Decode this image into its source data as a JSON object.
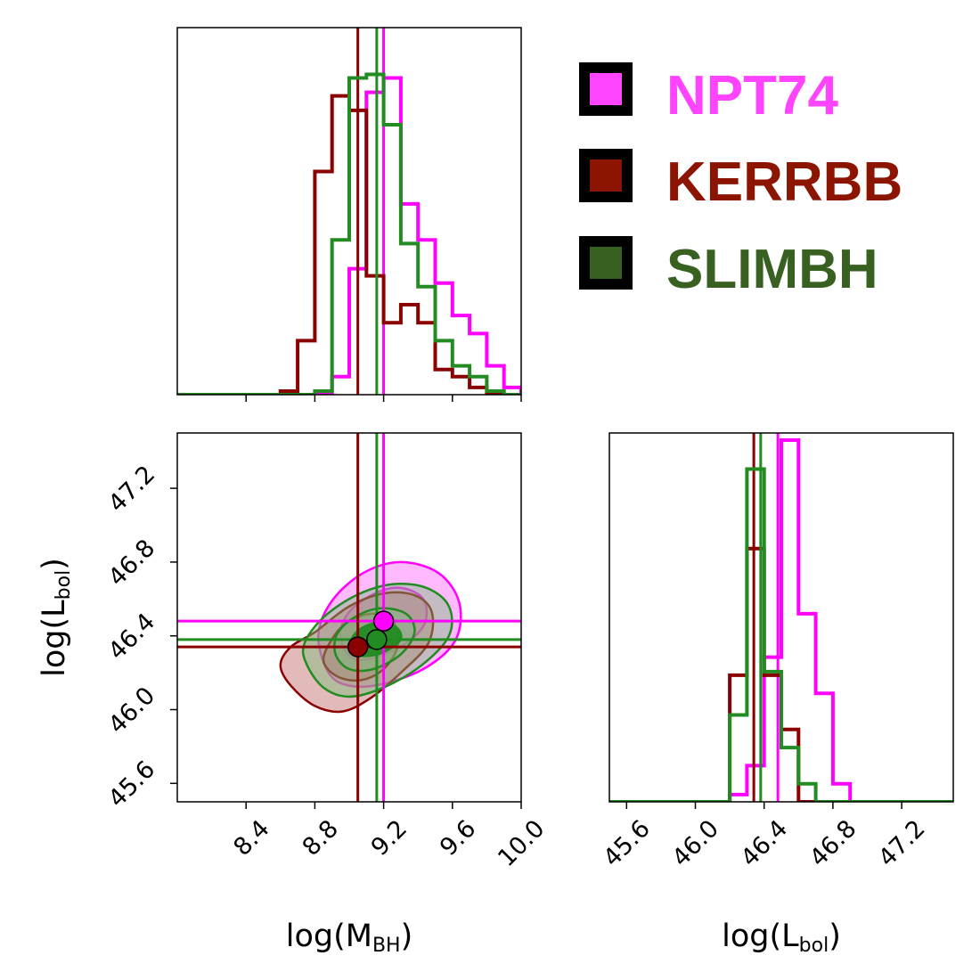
{
  "chart_data": {
    "type": "corner",
    "title": "",
    "parameters": [
      {
        "key": "mbh",
        "label": "log(M",
        "sub": "BH",
        "suffix": ")",
        "range": [
          8.0,
          10.0
        ],
        "ticks": [
          "8.4",
          "8.8",
          "9.2",
          "9.6",
          "10.0"
        ]
      },
      {
        "key": "lbol",
        "label": "log(L",
        "sub": "bol",
        "suffix": ")",
        "range": [
          45.5,
          47.5
        ],
        "ticks": [
          "45.6",
          "46.0",
          "46.4",
          "46.8",
          "47.2"
        ]
      }
    ],
    "hist_bins_mbh": [
      8.0,
      8.1,
      8.2,
      8.3,
      8.4,
      8.5,
      8.6,
      8.7,
      8.8,
      8.9,
      9.0,
      9.1,
      9.2,
      9.3,
      9.4,
      9.5,
      9.6,
      9.7,
      9.8,
      9.9,
      10.0
    ],
    "hist_bins_lbol": [
      45.5,
      45.6,
      45.7,
      45.8,
      45.9,
      46.0,
      46.1,
      46.2,
      46.3,
      46.4,
      46.5,
      46.6,
      46.7,
      46.8,
      46.9,
      47.0,
      47.1,
      47.2,
      47.3,
      47.4,
      47.5
    ],
    "series": [
      {
        "name": "NPT74",
        "color": "#ff00ff",
        "fill": "#ff66ff",
        "legend_color": "#ff44ff",
        "point": [
          9.2,
          46.48
        ],
        "hist_mbh": [
          0,
          0,
          0,
          0,
          0,
          0,
          0,
          0,
          0,
          0.05,
          0.35,
          0.84,
          0.88,
          0.53,
          0.43,
          0.31,
          0.22,
          0.17,
          0.08,
          0.02
        ],
        "hist_lbol": [
          0,
          0,
          0,
          0,
          0,
          0,
          0,
          0.02,
          0.1,
          0.4,
          1.0,
          0.52,
          0.3,
          0.05,
          0,
          0,
          0,
          0,
          0,
          0
        ],
        "contour_inner": [
          [
            8.97,
            46.33
          ],
          [
            9.04,
            46.27
          ],
          [
            9.17,
            46.29
          ],
          [
            9.33,
            46.36
          ],
          [
            9.44,
            46.47
          ],
          [
            9.43,
            46.6
          ],
          [
            9.3,
            46.66
          ],
          [
            9.15,
            46.63
          ],
          [
            9.01,
            46.54
          ],
          [
            8.95,
            46.43
          ]
        ],
        "contour_outer": [
          [
            8.88,
            46.2
          ],
          [
            9.0,
            46.13
          ],
          [
            9.2,
            46.14
          ],
          [
            9.45,
            46.23
          ],
          [
            9.62,
            46.38
          ],
          [
            9.64,
            46.58
          ],
          [
            9.52,
            46.74
          ],
          [
            9.3,
            46.8
          ],
          [
            9.08,
            46.74
          ],
          [
            8.9,
            46.59
          ],
          [
            8.82,
            46.4
          ]
        ]
      },
      {
        "name": "KERRBB",
        "color": "#8b0000",
        "fill": "#c06666",
        "legend_color": "#8b1500",
        "point": [
          9.05,
          46.34
        ],
        "hist_mbh": [
          0,
          0,
          0,
          0,
          0,
          0,
          0.01,
          0.15,
          0.62,
          0.83,
          0.79,
          0.33,
          0.2,
          0.25,
          0.2,
          0.07,
          0.05,
          0.02,
          0,
          0
        ],
        "hist_lbol": [
          0,
          0,
          0,
          0,
          0,
          0,
          0,
          0.35,
          0.7,
          0.35,
          0.2,
          0,
          0,
          0,
          0,
          0,
          0,
          0,
          0,
          0
        ],
        "contour_inner": [
          [
            8.85,
            46.27
          ],
          [
            8.93,
            46.18
          ],
          [
            9.07,
            46.16
          ],
          [
            9.2,
            46.22
          ],
          [
            9.28,
            46.34
          ],
          [
            9.26,
            46.47
          ],
          [
            9.15,
            46.52
          ],
          [
            9.02,
            46.49
          ],
          [
            8.92,
            46.41
          ]
        ],
        "contour_outer": [
          [
            8.6,
            46.24
          ],
          [
            8.66,
            46.13
          ],
          [
            8.8,
            46.02
          ],
          [
            8.96,
            45.99
          ],
          [
            9.12,
            46.06
          ],
          [
            9.3,
            46.2
          ],
          [
            9.46,
            46.36
          ],
          [
            9.48,
            46.53
          ],
          [
            9.38,
            46.62
          ],
          [
            9.2,
            46.63
          ],
          [
            9.0,
            46.56
          ],
          [
            8.8,
            46.42
          ],
          [
            8.66,
            46.34
          ]
        ]
      },
      {
        "name": "SLIMBH",
        "color": "#228b22",
        "fill": "#7cbf7c",
        "legend_color": "#386020",
        "point": [
          9.16,
          46.38
        ],
        "hist_mbh": [
          0,
          0,
          0,
          0,
          0,
          0,
          0,
          0,
          0.01,
          0.43,
          0.88,
          0.89,
          0.75,
          0.42,
          0.3,
          0.15,
          0.08,
          0.05,
          0.01,
          0
        ],
        "hist_lbol": [
          0,
          0,
          0,
          0,
          0,
          0,
          0,
          0.24,
          0.92,
          0.36,
          0.15,
          0.05,
          0,
          0,
          0,
          0,
          0,
          0,
          0,
          0
        ],
        "contour_core": [
          [
            9.0,
            46.33
          ],
          [
            9.08,
            46.29
          ],
          [
            9.2,
            46.31
          ],
          [
            9.3,
            46.38
          ],
          [
            9.27,
            46.45
          ],
          [
            9.15,
            46.47
          ],
          [
            9.04,
            46.42
          ]
        ],
        "contour_inner": [
          [
            8.92,
            46.3
          ],
          [
            9.0,
            46.22
          ],
          [
            9.14,
            46.22
          ],
          [
            9.3,
            46.3
          ],
          [
            9.38,
            46.42
          ],
          [
            9.33,
            46.52
          ],
          [
            9.18,
            46.55
          ],
          [
            9.03,
            46.5
          ],
          [
            8.93,
            46.41
          ]
        ],
        "contour_outer": [
          [
            8.75,
            46.25
          ],
          [
            8.85,
            46.12
          ],
          [
            9.0,
            46.07
          ],
          [
            9.2,
            46.12
          ],
          [
            9.42,
            46.24
          ],
          [
            9.58,
            46.4
          ],
          [
            9.58,
            46.56
          ],
          [
            9.45,
            46.66
          ],
          [
            9.25,
            46.68
          ],
          [
            9.04,
            46.62
          ],
          [
            8.85,
            46.5
          ],
          [
            8.74,
            46.36
          ]
        ]
      }
    ]
  }
}
